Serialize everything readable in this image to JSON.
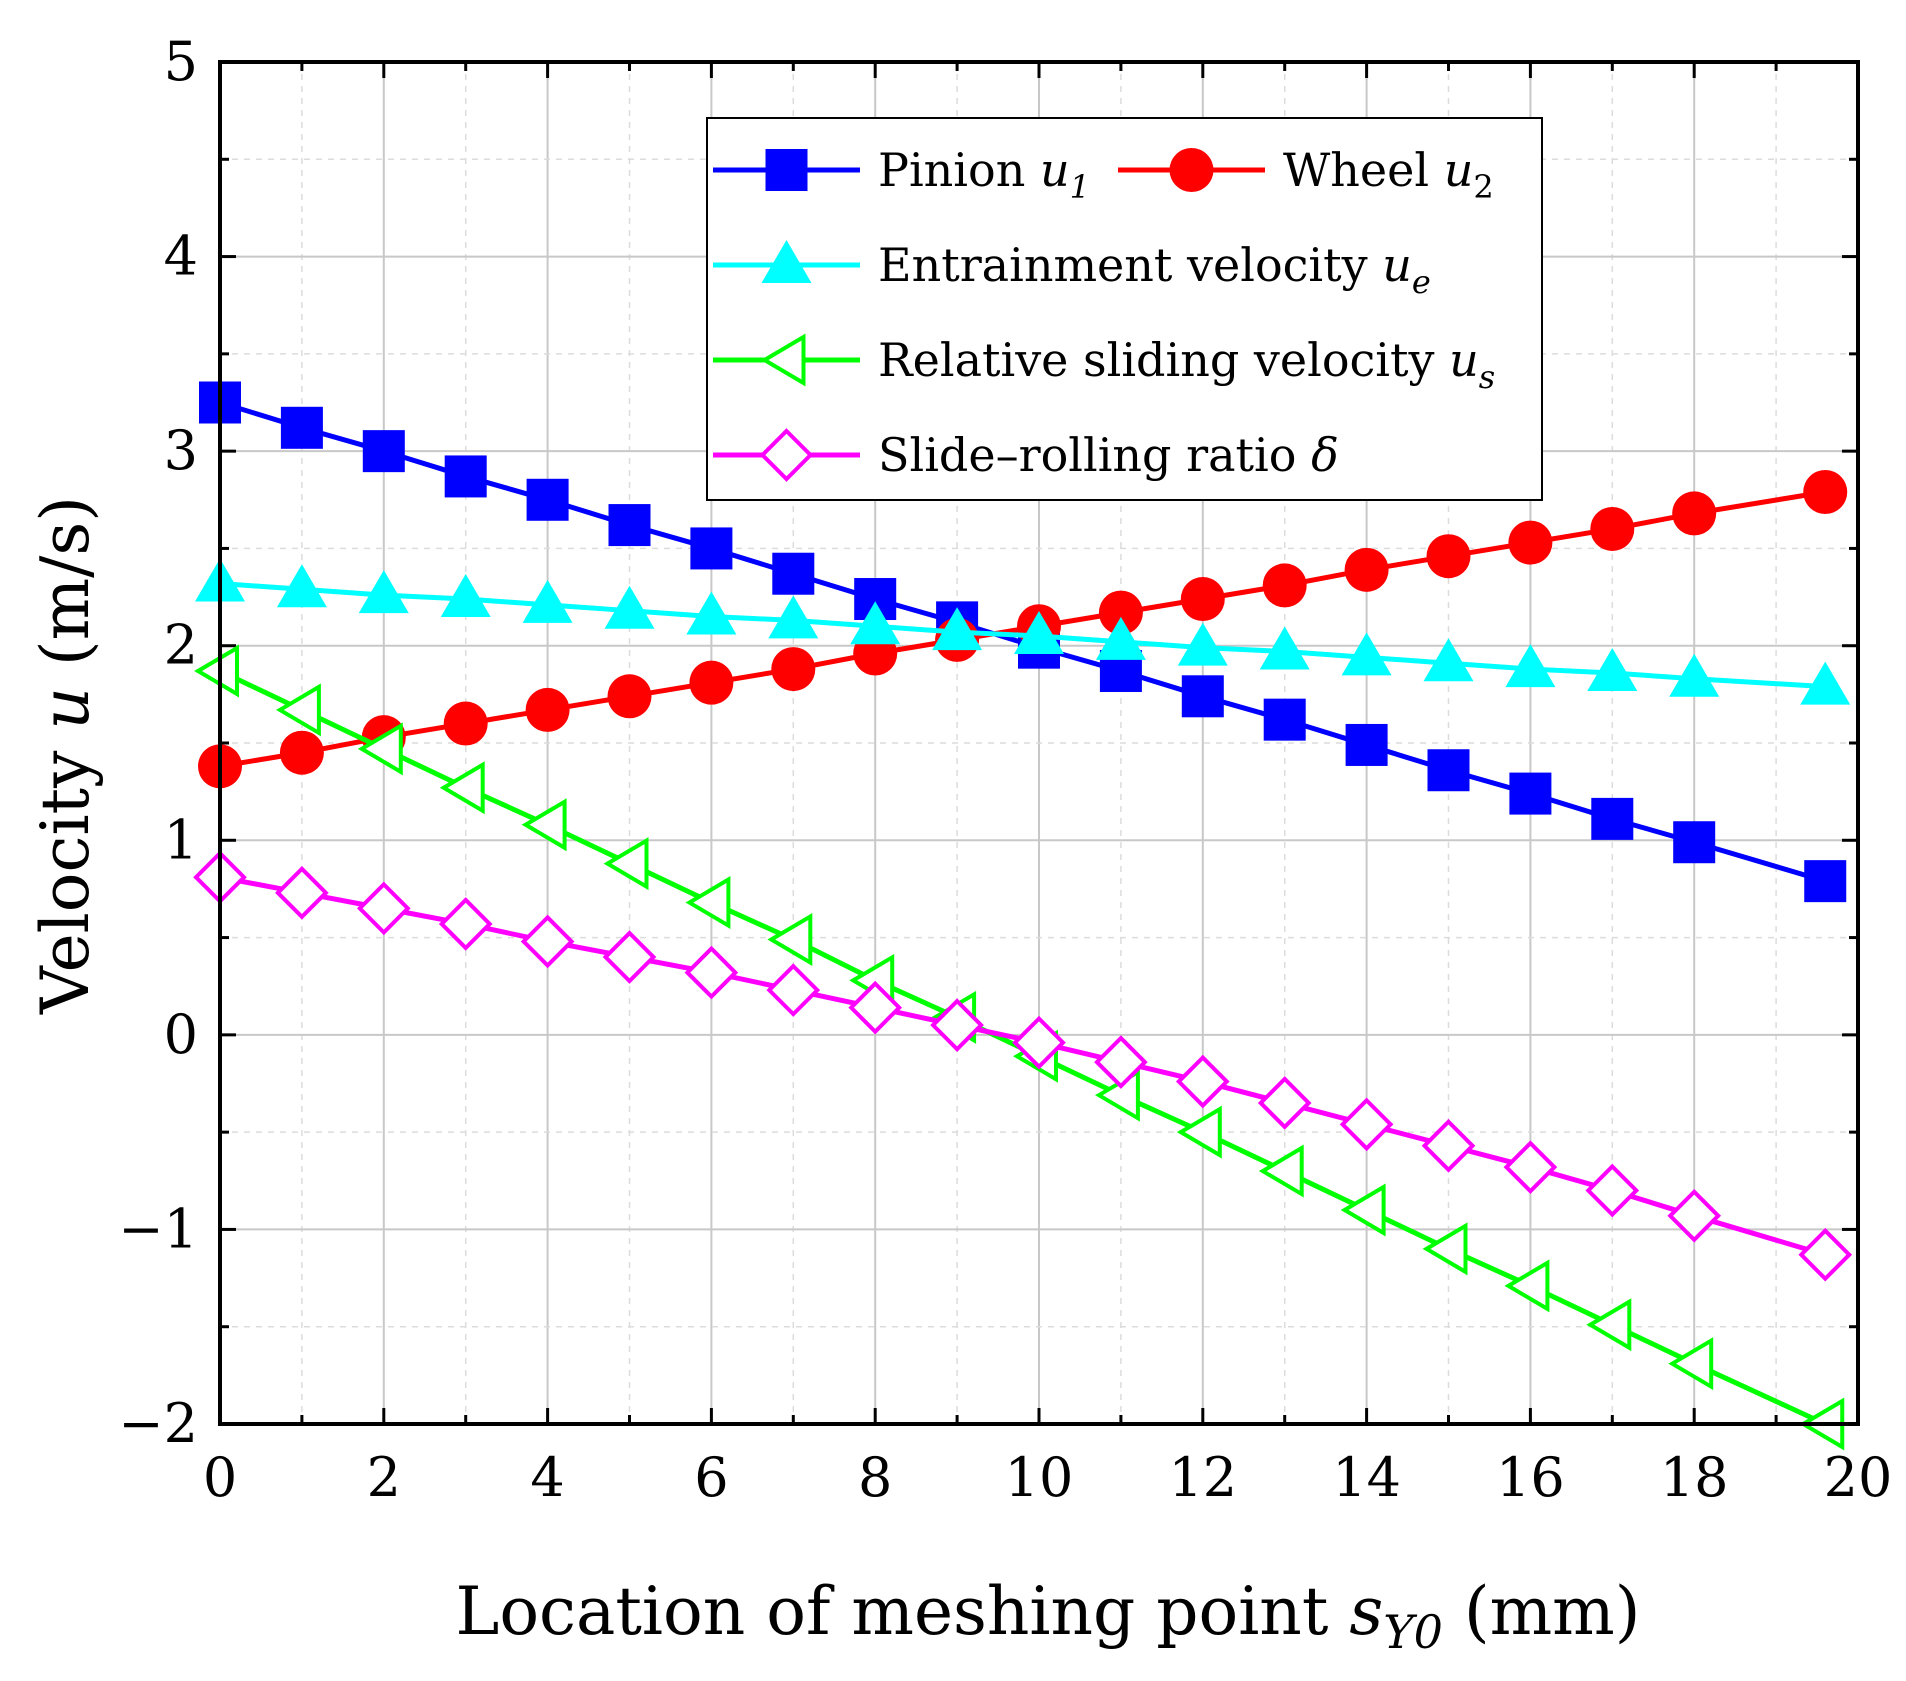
{
  "chart_data": {
    "type": "line",
    "title": "",
    "xlabel": {
      "text": "Location of meshing point ",
      "symbol": "s",
      "subscript": "Y0",
      "unit": " (mm)"
    },
    "ylabel": {
      "text": "Velocity ",
      "symbol": "u",
      "unit": " (m/s)"
    },
    "xlim": [
      0,
      20
    ],
    "ylim": [
      -2,
      5
    ],
    "x_ticks": [
      0,
      2,
      4,
      6,
      8,
      10,
      12,
      14,
      16,
      18,
      20
    ],
    "y_ticks": [
      -2,
      -1,
      0,
      1,
      2,
      3,
      4,
      5
    ],
    "x_tick_labels": [
      "0",
      "2",
      "4",
      "6",
      "8",
      "10",
      "12",
      "14",
      "16",
      "18",
      "20"
    ],
    "y_tick_labels": [
      "−2",
      "−1",
      "0",
      "1",
      "2",
      "3",
      "4",
      "5"
    ],
    "grid": true,
    "legend_position": "top-right",
    "x": [
      0,
      1,
      2,
      3,
      4,
      5,
      6,
      7,
      8,
      9,
      10,
      11,
      12,
      13,
      14,
      15,
      16,
      17,
      18,
      19.6
    ],
    "series": [
      {
        "name": "Pinion",
        "symbol": "u",
        "subscript": "1",
        "color": "#0000ff",
        "marker": "filled-square",
        "values": [
          3.25,
          3.12,
          3.0,
          2.87,
          2.75,
          2.62,
          2.5,
          2.37,
          2.24,
          2.12,
          1.99,
          1.87,
          1.74,
          1.62,
          1.49,
          1.36,
          1.24,
          1.11,
          0.99,
          0.79
        ]
      },
      {
        "name": "Wheel",
        "symbol": "u",
        "subscript": "2",
        "color": "#ff0000",
        "marker": "filled-circle",
        "values": [
          1.38,
          1.45,
          1.53,
          1.6,
          1.67,
          1.74,
          1.81,
          1.88,
          1.96,
          2.03,
          2.1,
          2.17,
          2.24,
          2.31,
          2.39,
          2.46,
          2.53,
          2.6,
          2.68,
          2.79
        ]
      },
      {
        "name": "Entrainment velocity",
        "symbol": "u",
        "subscript": "e",
        "color": "#00ffff",
        "marker": "filled-triangle-up",
        "values": [
          2.32,
          2.29,
          2.26,
          2.24,
          2.21,
          2.18,
          2.15,
          2.13,
          2.1,
          2.07,
          2.05,
          2.02,
          1.99,
          1.97,
          1.94,
          1.91,
          1.88,
          1.86,
          1.83,
          1.79
        ]
      },
      {
        "name": "Relative sliding velocity",
        "symbol": "u",
        "subscript": "s",
        "color": "#00ff00",
        "marker": "open-triangle-left",
        "values": [
          1.87,
          1.67,
          1.47,
          1.27,
          1.08,
          0.88,
          0.68,
          0.49,
          0.28,
          0.09,
          -0.11,
          -0.31,
          -0.5,
          -0.7,
          -0.9,
          -1.1,
          -1.29,
          -1.49,
          -1.69,
          -2.0
        ]
      },
      {
        "name": "Slide–rolling ratio",
        "symbol": "δ",
        "subscript": "",
        "color": "#ff00ff",
        "marker": "open-diamond",
        "values": [
          0.81,
          0.73,
          0.65,
          0.57,
          0.48,
          0.4,
          0.32,
          0.23,
          0.14,
          0.05,
          -0.04,
          -0.14,
          -0.24,
          -0.35,
          -0.46,
          -0.57,
          -0.68,
          -0.8,
          -0.93,
          -1.13
        ]
      }
    ]
  }
}
